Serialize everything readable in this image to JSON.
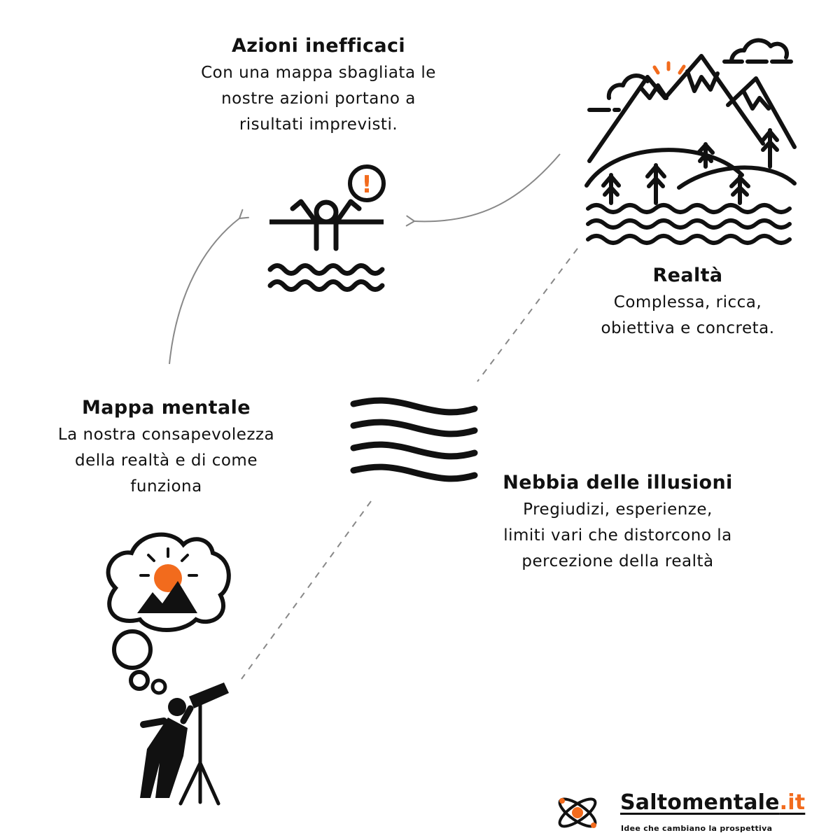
{
  "azioni": {
    "title": "Azioni inefficaci",
    "lines": [
      "Con una mappa sbagliata le",
      "nostre azioni portano a",
      "risultati imprevisti."
    ]
  },
  "realta": {
    "title": "Realtà",
    "lines": [
      "Complessa, ricca,",
      "obiettiva e concreta."
    ]
  },
  "mappa": {
    "title": "Mappa mentale",
    "lines": [
      "La nostra consapevolezza",
      "della realtà e di come",
      "funziona"
    ]
  },
  "nebbia": {
    "title": "Nebbia delle illusioni",
    "lines": [
      "Pregiudizi, esperienze,",
      "limiti vari che distorcono la",
      "percezione della realtà"
    ]
  },
  "alert_symbol": "!",
  "brand": {
    "name": "Saltomentale",
    "tld": ".it",
    "tagline": "Idee che cambiano la prospettiva"
  },
  "icons": [
    "drowning-person-icon",
    "alert-icon",
    "mountains-landscape-icon",
    "fog-waves-icon",
    "person-telescope-icon",
    "thought-cloud-icon",
    "atom-logo-icon"
  ],
  "colors": {
    "accent": "#f26b1d",
    "ink": "#111111",
    "connector": "#888888"
  }
}
